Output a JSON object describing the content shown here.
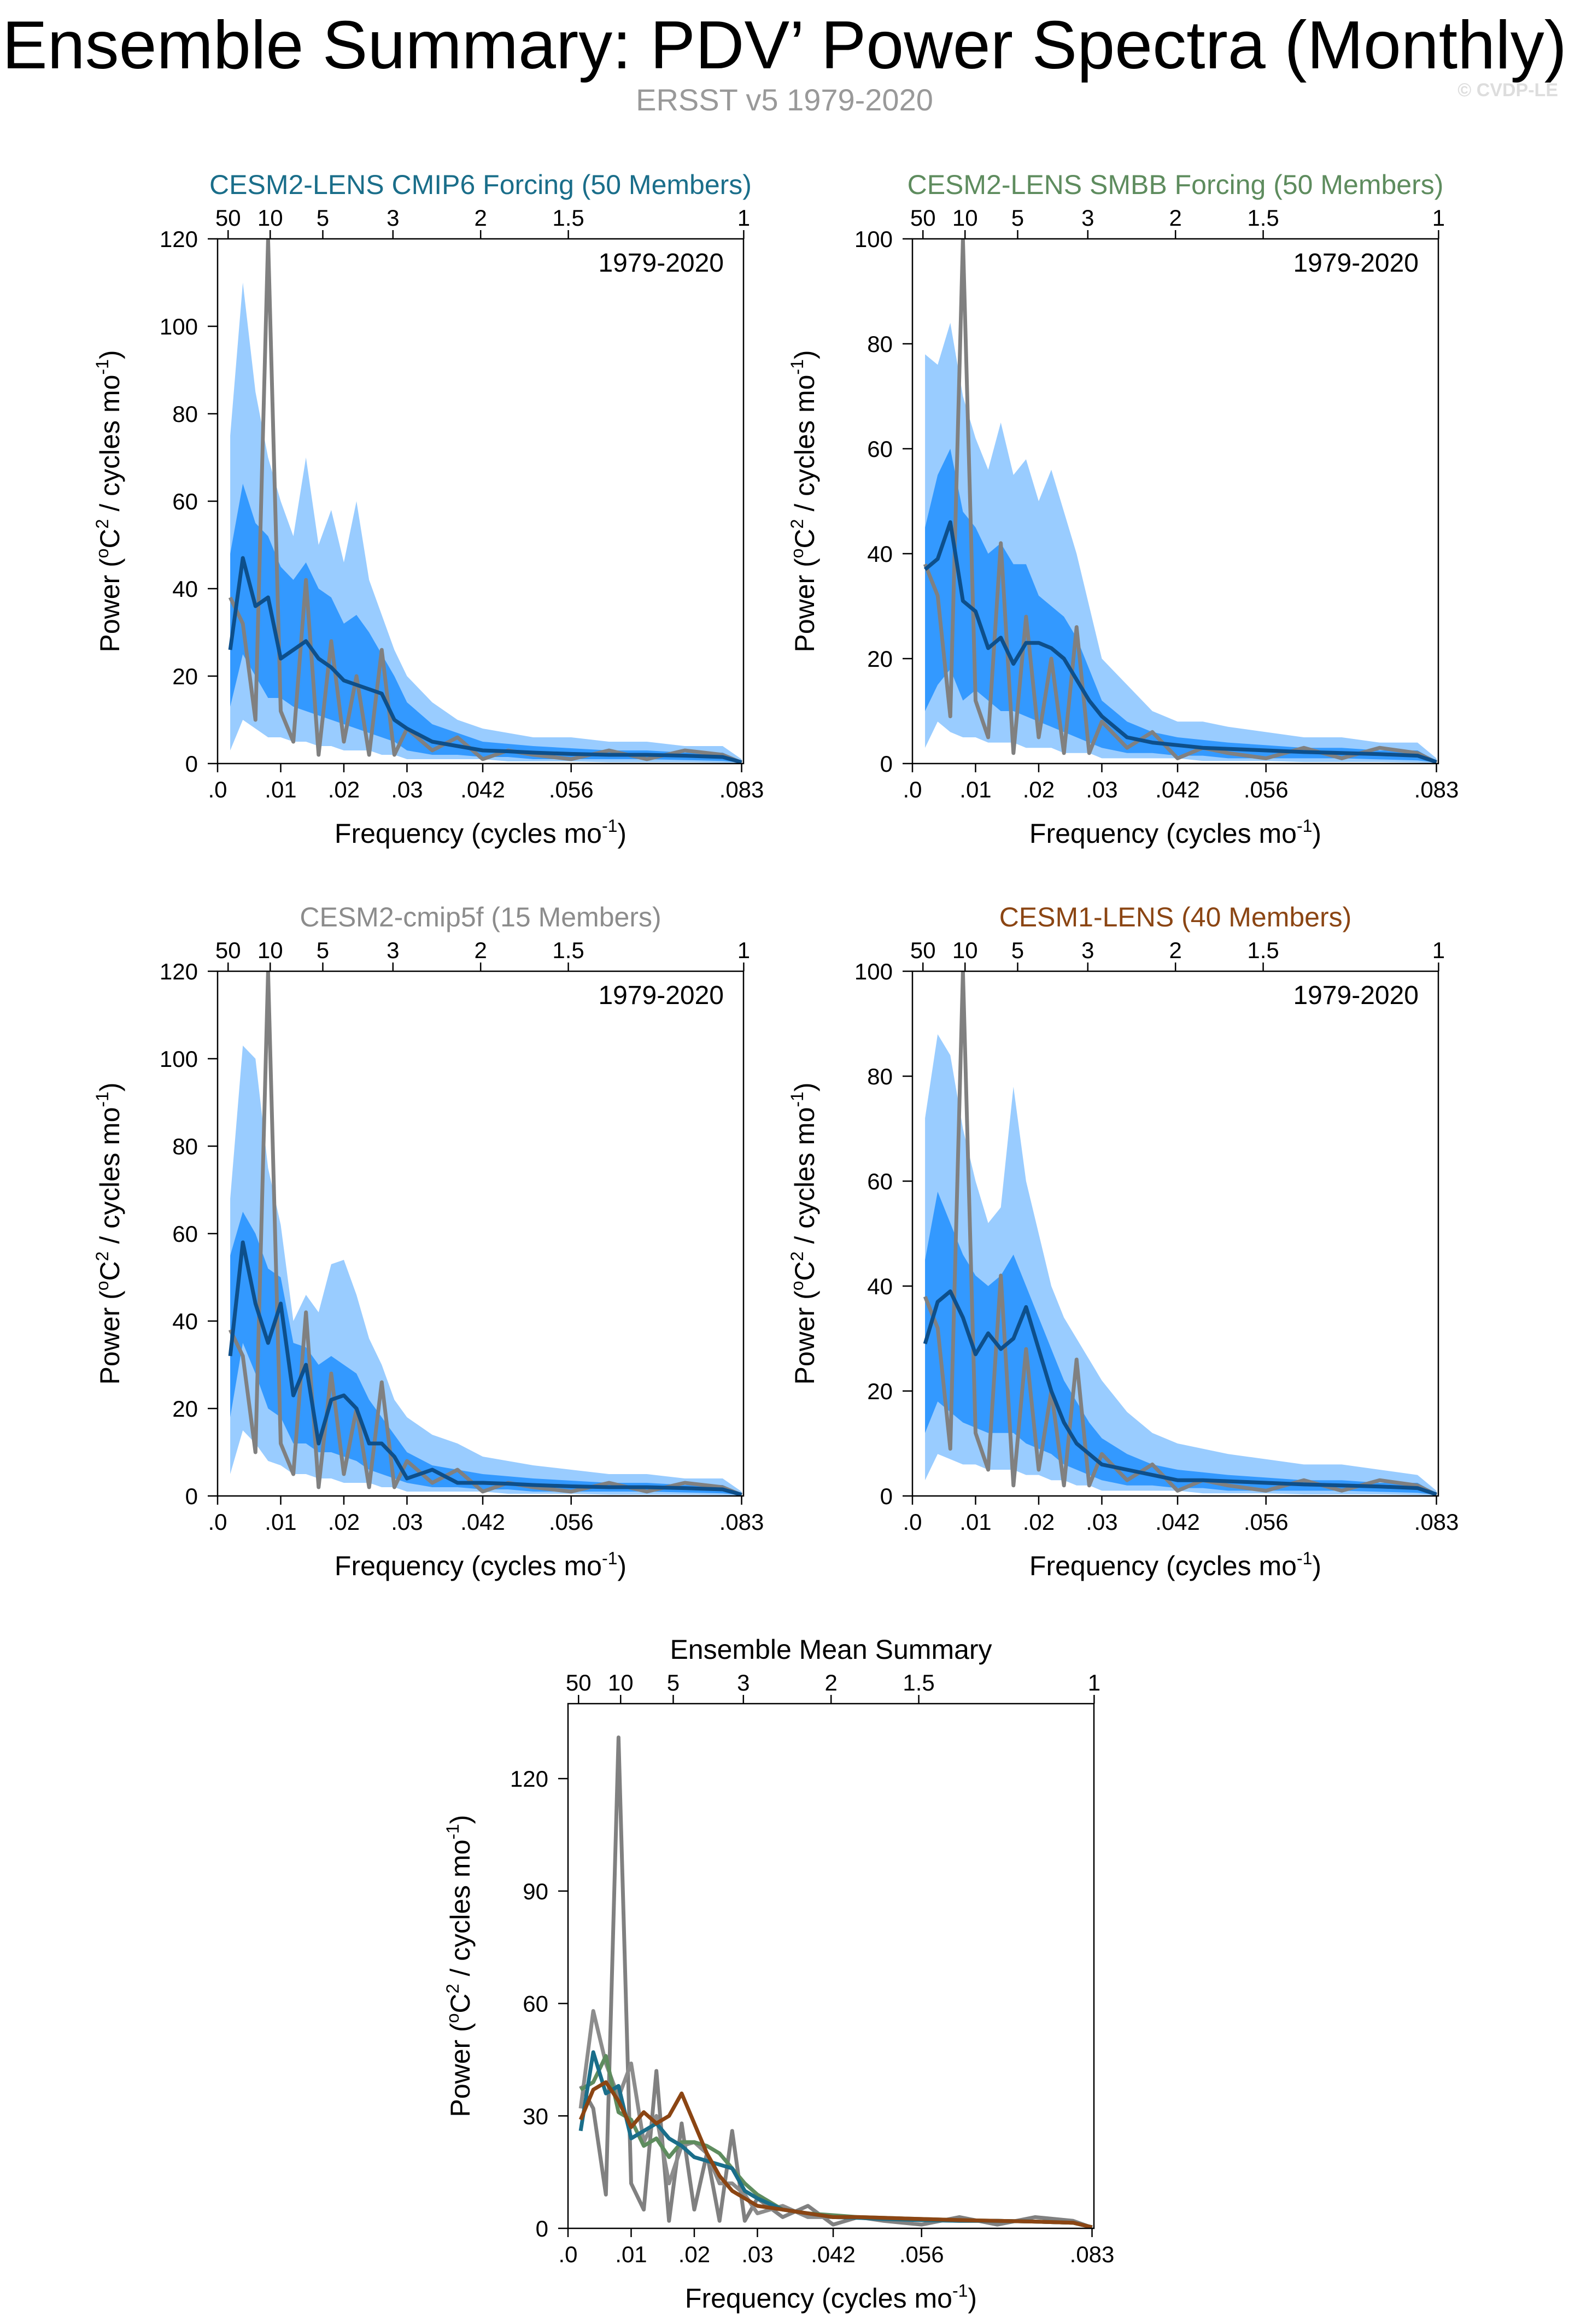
{
  "header": {
    "title": "Ensemble Summary: PDV’ Power Spectra (Monthly)",
    "subtitle": "ERSST v5 1979-2020",
    "copyright": "© CVDP-LE"
  },
  "colors": {
    "band_outer": "#99ccff",
    "band_inner": "#3399ff",
    "ens_mean_line": "#0d4f8b",
    "obs_line": "#808080",
    "cesm2_cmip6": "#1a6e8a",
    "cesm2_smbb": "#5e8c5e",
    "cesm2_cmip5f": "#8c8c8c",
    "cesm1_lens": "#8b4513"
  },
  "common": {
    "xlabel": "Frequency (cycles mo",
    "xlabel_sup": "-1",
    "xlabel_end": ")",
    "ylabel_pre": "Power (",
    "ylabel_o": "o",
    "ylabel_mid": "C",
    "ylabel_2": "2",
    "ylabel_post": " / cycles mo",
    "ylabel_sup": "-1",
    "ylabel_end": ")",
    "period_label": "1979-2020",
    "x_ticks": [
      0.0,
      0.01,
      0.02,
      0.03,
      0.042,
      0.056,
      0.083
    ],
    "x_tick_labels": [
      ".0",
      ".01",
      ".02",
      ".03",
      ".042",
      ".056",
      ".083"
    ],
    "top_ticks": [
      50,
      10,
      5,
      3,
      2,
      1.5,
      1
    ],
    "top_tick_labels": [
      "50",
      "10",
      "5",
      "3",
      "2",
      "1.5",
      "1"
    ]
  },
  "chart_data": [
    {
      "type": "area",
      "title": "CESM2-LENS CMIP6 Forcing (50 Members)",
      "title_color": "#1a6e8a",
      "xlim": [
        0,
        0.0833
      ],
      "ylim": [
        0,
        120
      ],
      "y_ticks": [
        0,
        20,
        40,
        60,
        80,
        100,
        120
      ],
      "x": [
        0.002,
        0.004,
        0.006,
        0.008,
        0.01,
        0.012,
        0.014,
        0.016,
        0.018,
        0.02,
        0.022,
        0.024,
        0.026,
        0.028,
        0.03,
        0.034,
        0.038,
        0.042,
        0.046,
        0.05,
        0.056,
        0.062,
        0.068,
        0.074,
        0.08,
        0.083
      ],
      "band_outer_low": [
        3,
        10,
        8,
        6,
        6,
        5,
        5,
        4,
        4,
        3,
        3,
        3,
        2,
        2,
        1,
        1,
        1,
        1,
        0.5,
        0.5,
        0.5,
        0.3,
        0.3,
        0.3,
        0.2,
        0.1
      ],
      "band_outer_high": [
        75,
        110,
        85,
        70,
        60,
        52,
        70,
        50,
        58,
        46,
        60,
        42,
        34,
        26,
        20,
        14,
        10,
        8,
        7,
        6,
        6,
        5,
        5,
        4,
        4,
        1
      ],
      "band_inner_low": [
        13,
        25,
        20,
        15,
        15,
        13,
        12,
        11,
        10,
        9,
        8,
        7,
        6,
        5,
        3,
        2,
        2,
        1.5,
        1.5,
        1,
        1,
        1,
        1,
        0.8,
        0.6,
        0.2
      ],
      "band_inner_high": [
        48,
        64,
        55,
        52,
        45,
        42,
        46,
        40,
        38,
        32,
        34,
        30,
        25,
        20,
        14,
        9,
        7,
        5,
        4.5,
        4,
        3.5,
        3,
        3,
        2.5,
        2.5,
        0.5
      ],
      "ens_mean": [
        26,
        47,
        36,
        38,
        24,
        26,
        28,
        24,
        22,
        19,
        18,
        17,
        16,
        10,
        8,
        5,
        4,
        3,
        2.8,
        2.5,
        2.2,
        2,
        2,
        1.8,
        1.5,
        0.3
      ],
      "obs": [
        38,
        32,
        10,
        120,
        12,
        5,
        42,
        2,
        28,
        5,
        20,
        2,
        26,
        2,
        8,
        3,
        6,
        1,
        3,
        2,
        1,
        3,
        1,
        3,
        2,
        0.2
      ]
    },
    {
      "type": "area",
      "title": "CESM2-LENS SMBB Forcing (50 Members)",
      "title_color": "#5e8c5e",
      "xlim": [
        0,
        0.0833
      ],
      "ylim": [
        0,
        100
      ],
      "y_ticks": [
        0,
        20,
        40,
        60,
        80,
        100
      ],
      "x": [
        0.002,
        0.004,
        0.006,
        0.008,
        0.01,
        0.012,
        0.014,
        0.016,
        0.018,
        0.02,
        0.022,
        0.024,
        0.026,
        0.028,
        0.03,
        0.034,
        0.038,
        0.042,
        0.046,
        0.05,
        0.056,
        0.062,
        0.068,
        0.074,
        0.08,
        0.083
      ],
      "band_outer_low": [
        3,
        8,
        6,
        5,
        5,
        4,
        4,
        4,
        3,
        3,
        3,
        2,
        2,
        2,
        1,
        1,
        1,
        1,
        0.5,
        0.5,
        0.5,
        0.3,
        0.3,
        0.3,
        0.2,
        0.1
      ],
      "band_outer_high": [
        78,
        76,
        84,
        70,
        62,
        56,
        65,
        55,
        58,
        50,
        56,
        48,
        40,
        30,
        20,
        15,
        10,
        8,
        8,
        7,
        6,
        5,
        5,
        4,
        4,
        1
      ],
      "band_inner_low": [
        10,
        15,
        18,
        12,
        14,
        12,
        10,
        10,
        9,
        8,
        7,
        6,
        5,
        4,
        3,
        2,
        2,
        1.5,
        1.5,
        1,
        1,
        1,
        1,
        0.8,
        0.6,
        0.2
      ],
      "band_inner_high": [
        45,
        55,
        60,
        48,
        45,
        40,
        42,
        38,
        38,
        32,
        30,
        28,
        24,
        18,
        12,
        8,
        6,
        5,
        4.5,
        4,
        3.5,
        3,
        3,
        2.5,
        2.5,
        0.5
      ],
      "ens_mean": [
        37,
        39,
        46,
        31,
        29,
        22,
        24,
        19,
        23,
        23,
        22,
        20,
        16,
        12,
        9,
        5,
        4,
        3.5,
        3,
        2.8,
        2.5,
        2.2,
        2,
        1.8,
        1.5,
        0.3
      ],
      "obs": [
        38,
        32,
        9,
        100,
        12,
        5,
        42,
        2,
        28,
        5,
        20,
        2,
        26,
        2,
        8,
        3,
        6,
        1,
        3,
        2,
        1,
        3,
        1,
        3,
        2,
        0.2
      ]
    },
    {
      "type": "area",
      "title": "CESM2-cmip5f (15 Members)",
      "title_color": "#8c8c8c",
      "xlim": [
        0,
        0.0833
      ],
      "ylim": [
        0,
        120
      ],
      "y_ticks": [
        0,
        20,
        40,
        60,
        80,
        100,
        120
      ],
      "x": [
        0.002,
        0.004,
        0.006,
        0.008,
        0.01,
        0.012,
        0.014,
        0.016,
        0.018,
        0.02,
        0.022,
        0.024,
        0.026,
        0.028,
        0.03,
        0.034,
        0.038,
        0.042,
        0.046,
        0.05,
        0.056,
        0.062,
        0.068,
        0.074,
        0.08,
        0.083
      ],
      "band_outer_low": [
        5,
        15,
        12,
        8,
        7,
        5,
        5,
        4,
        4,
        3,
        3,
        3,
        2,
        2,
        1,
        1,
        1,
        1,
        0.5,
        0.5,
        0.5,
        0.3,
        0.3,
        0.3,
        0.2,
        0.1
      ],
      "band_outer_high": [
        68,
        103,
        100,
        75,
        62,
        40,
        46,
        42,
        53,
        54,
        46,
        36,
        30,
        22,
        18,
        14,
        12,
        9,
        8,
        7,
        6,
        5,
        5,
        4,
        4,
        1
      ],
      "band_inner_low": [
        18,
        35,
        28,
        20,
        18,
        12,
        12,
        10,
        10,
        9,
        8,
        6,
        5,
        4,
        3,
        2,
        2,
        1.5,
        1.5,
        1,
        1,
        1,
        1,
        0.8,
        0.6,
        0.2
      ],
      "band_inner_high": [
        55,
        65,
        60,
        52,
        50,
        35,
        34,
        30,
        32,
        30,
        28,
        22,
        18,
        14,
        10,
        7,
        6,
        5,
        4.5,
        4,
        3.5,
        3,
        3,
        2.5,
        2.5,
        0.5
      ],
      "ens_mean": [
        32,
        58,
        44,
        35,
        44,
        23,
        30,
        12,
        22,
        23,
        20,
        12,
        12,
        9,
        4,
        6,
        3,
        3,
        2.8,
        2.5,
        2.2,
        2,
        2,
        1.8,
        1.5,
        0.3
      ],
      "obs": [
        38,
        32,
        10,
        120,
        12,
        5,
        42,
        2,
        28,
        5,
        20,
        2,
        26,
        2,
        8,
        3,
        6,
        1,
        3,
        2,
        1,
        3,
        1,
        3,
        2,
        0.2
      ]
    },
    {
      "type": "area",
      "title": "CESM1-LENS (40 Members)",
      "title_color": "#8b4513",
      "xlim": [
        0,
        0.0833
      ],
      "ylim": [
        0,
        100
      ],
      "y_ticks": [
        0,
        20,
        40,
        60,
        80,
        100
      ],
      "x": [
        0.002,
        0.004,
        0.006,
        0.008,
        0.01,
        0.012,
        0.014,
        0.016,
        0.018,
        0.02,
        0.022,
        0.024,
        0.026,
        0.028,
        0.03,
        0.034,
        0.038,
        0.042,
        0.046,
        0.05,
        0.056,
        0.062,
        0.068,
        0.074,
        0.08,
        0.083
      ],
      "band_outer_low": [
        3,
        8,
        7,
        6,
        6,
        5,
        5,
        5,
        4,
        4,
        3,
        3,
        2,
        2,
        1,
        1,
        1,
        1,
        0.5,
        0.5,
        0.5,
        0.3,
        0.3,
        0.3,
        0.2,
        0.1
      ],
      "band_outer_high": [
        72,
        88,
        84,
        70,
        60,
        52,
        55,
        78,
        60,
        50,
        40,
        34,
        30,
        26,
        22,
        16,
        12,
        10,
        9,
        8,
        7,
        6,
        6,
        5,
        4,
        1
      ],
      "band_inner_low": [
        12,
        18,
        16,
        14,
        13,
        12,
        12,
        12,
        10,
        9,
        8,
        6,
        5,
        4,
        3,
        2,
        2,
        1.5,
        1.5,
        1,
        1,
        1,
        1,
        0.8,
        0.6,
        0.2
      ],
      "band_inner_high": [
        45,
        58,
        52,
        46,
        42,
        40,
        42,
        46,
        40,
        34,
        28,
        22,
        18,
        14,
        11,
        8,
        6,
        5,
        4.5,
        4,
        3.5,
        3,
        3,
        2.5,
        2.5,
        0.5
      ],
      "ens_mean": [
        29,
        37,
        39,
        34,
        27,
        31,
        28,
        30,
        36,
        28,
        20,
        14,
        10,
        8,
        6,
        5,
        4,
        3,
        3,
        2.8,
        2.5,
        2.2,
        2,
        1.8,
        1.5,
        0.3
      ],
      "obs": [
        38,
        32,
        9,
        100,
        12,
        5,
        42,
        2,
        28,
        5,
        20,
        2,
        26,
        2,
        8,
        3,
        6,
        1,
        3,
        2,
        1,
        3,
        1,
        3,
        2,
        0.2
      ]
    },
    {
      "type": "line",
      "title": "Ensemble Mean Summary",
      "title_color": "#000000",
      "xlim": [
        0,
        0.0833
      ],
      "ylim": [
        0,
        140
      ],
      "y_ticks": [
        0,
        30,
        60,
        90,
        120
      ],
      "x": [
        0.002,
        0.004,
        0.006,
        0.008,
        0.01,
        0.012,
        0.014,
        0.016,
        0.018,
        0.02,
        0.022,
        0.024,
        0.026,
        0.028,
        0.03,
        0.034,
        0.038,
        0.042,
        0.046,
        0.05,
        0.056,
        0.062,
        0.068,
        0.074,
        0.08,
        0.083
      ],
      "series": [
        {
          "color": "#808080",
          "values": [
            38,
            32,
            9,
            131,
            12,
            5,
            42,
            2,
            28,
            5,
            20,
            2,
            26,
            2,
            8,
            3,
            6,
            1,
            3,
            2,
            1,
            3,
            1,
            3,
            2,
            0.2
          ]
        },
        {
          "color": "#8c8c8c",
          "values": [
            32,
            58,
            44,
            35,
            44,
            23,
            30,
            12,
            22,
            23,
            20,
            12,
            12,
            9,
            4,
            6,
            3,
            3,
            2.8,
            2.5,
            2.2,
            2,
            2,
            1.8,
            1.5,
            0.3
          ]
        },
        {
          "color": "#5e8c5e",
          "values": [
            37,
            39,
            46,
            31,
            29,
            22,
            24,
            19,
            23,
            23,
            22,
            20,
            16,
            12,
            9,
            5,
            4,
            3.5,
            3,
            2.8,
            2.5,
            2.2,
            2,
            1.8,
            1.5,
            0.3
          ]
        },
        {
          "color": "#1a6e8a",
          "values": [
            26,
            47,
            36,
            38,
            24,
            26,
            28,
            24,
            22,
            19,
            18,
            17,
            16,
            10,
            8,
            5,
            4,
            3,
            2.8,
            2.5,
            2.2,
            2,
            2,
            1.8,
            1.5,
            0.3
          ]
        },
        {
          "color": "#8b4513",
          "values": [
            29,
            37,
            39,
            34,
            27,
            31,
            28,
            30,
            36,
            28,
            20,
            14,
            10,
            8,
            6,
            5,
            4,
            3,
            3,
            2.8,
            2.5,
            2.2,
            2,
            1.8,
            1.5,
            0.3
          ]
        }
      ]
    }
  ]
}
